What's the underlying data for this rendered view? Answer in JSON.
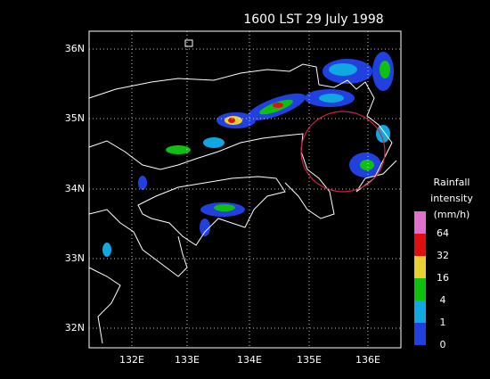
{
  "title": "1600 LST 29 July 1998",
  "lat_labels": [
    "36N",
    "35N",
    "34N",
    "33N",
    "32N"
  ],
  "lon_labels": [
    "132E",
    "133E",
    "134E",
    "135E",
    "136E"
  ],
  "legend": {
    "title": [
      "Rainfall",
      "intensity",
      "(mm/h)"
    ],
    "colors": [
      "#e070d0",
      "#e01010",
      "#e8d030",
      "#10c010",
      "#10a8e0",
      "#2040e0"
    ],
    "labels": [
      64,
      32,
      16,
      4,
      1,
      0
    ]
  }
}
